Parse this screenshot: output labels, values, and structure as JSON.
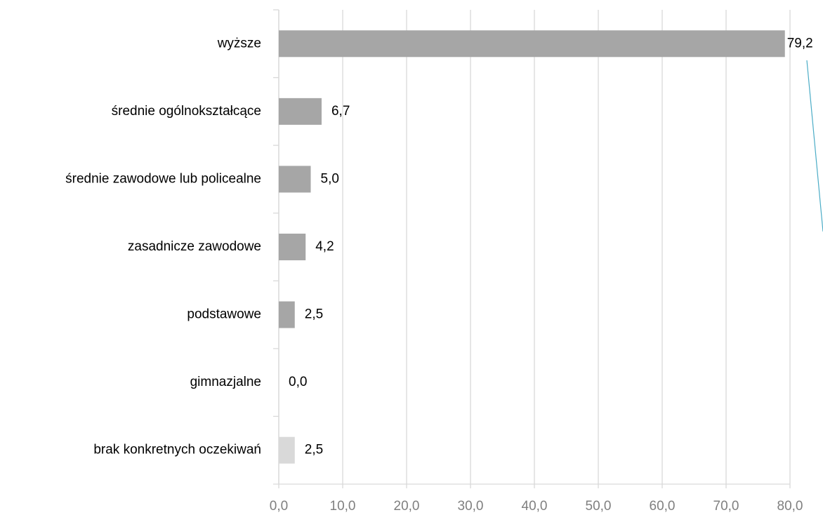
{
  "chart_data": {
    "type": "hbar",
    "categories": [
      "wyższe",
      "średnie ogólnokształcące",
      "średnie zawodowe lub policealne",
      "zasadnicze zawodowe",
      "podstawowe",
      "gimnazjalne",
      "brak konkretnych oczekiwań"
    ],
    "values": [
      79.2,
      6.7,
      5.0,
      4.2,
      2.5,
      0.0,
      2.5
    ],
    "value_labels": [
      "79,2",
      "6,7",
      "5,0",
      "4,2",
      "2,5",
      "0,0",
      "2,5"
    ],
    "colors": [
      "#a6a6a6",
      "#a6a6a6",
      "#a6a6a6",
      "#a6a6a6",
      "#a6a6a6",
      "#a6a6a6",
      "#d9d9d9"
    ],
    "xlim": [
      0,
      80
    ],
    "xticks": [
      {
        "value": 0,
        "label": "0,0"
      },
      {
        "value": 10,
        "label": "10,0"
      },
      {
        "value": 20,
        "label": "20,0"
      },
      {
        "value": 30,
        "label": "30,0"
      },
      {
        "value": 40,
        "label": "40,0"
      },
      {
        "value": 50,
        "label": "50,0"
      },
      {
        "value": 60,
        "label": "60,0"
      },
      {
        "value": 70,
        "label": "70,0"
      },
      {
        "value": 80,
        "label": "80,0"
      }
    ],
    "grid": true
  }
}
